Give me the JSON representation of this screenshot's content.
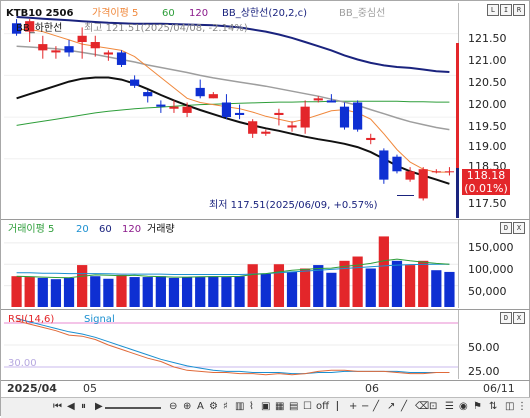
{
  "header": {
    "symbol": "KTB10 2506",
    "ma_label": "가격이평 5",
    "ma_60": "60",
    "ma_120": "120",
    "bb_upper": "BB_상한선(20,2,c)",
    "bb_mid": "BB_중심선",
    "bb_lower": "BB_하한선",
    "high_note": "최고 121.51(2025/04/08, -2.14%)"
  },
  "low_note": "최저 117.51(2025/06/09, +0.57%)",
  "price_axis": [
    "121.50",
    "121.00",
    "120.50",
    "120.00",
    "119.50",
    "119.00",
    "118.50",
    "117.50"
  ],
  "price_tag": {
    "price": "118.18",
    "change": "(0.01%)"
  },
  "volume": {
    "legend": "거래이평 5",
    "l20": "20",
    "l60": "60",
    "l120": "120",
    "l_vol": "거래량",
    "axis": [
      "150,000",
      "100,000",
      "50,000"
    ]
  },
  "rsi": {
    "legend": "RSI(14,6)",
    "signal": "Signal",
    "axis": [
      "50.00",
      "25.00"
    ],
    "level": "30.00"
  },
  "dates": [
    "2025/04",
    "05",
    "06",
    "06/11"
  ],
  "win_buttons": [
    "L",
    "I",
    "R"
  ],
  "win_buttons2": [
    "D",
    "X"
  ],
  "colors": {
    "up": "#e3262a",
    "down": "#0e2fd2",
    "ma5": "#f0883c",
    "bb_upper": "#1a237e",
    "bb_mid": "#9e9e9e",
    "bb_lower": "#111111",
    "ma60": "#2e9e3a"
  },
  "chart_data": [
    {
      "type": "candlestick",
      "title": "KTB10 2506",
      "ylim": [
        117.2,
        121.9
      ],
      "candles": [
        {
          "o": 121.75,
          "h": 121.85,
          "l": 121.45,
          "c": 121.5
        },
        {
          "o": 121.55,
          "h": 121.85,
          "l": 121.3,
          "c": 121.8
        },
        {
          "o": 121.1,
          "h": 121.45,
          "l": 120.9,
          "c": 121.25
        },
        {
          "o": 121.05,
          "h": 121.2,
          "l": 120.9,
          "c": 121.1
        },
        {
          "o": 121.2,
          "h": 121.35,
          "l": 120.95,
          "c": 121.05
        },
        {
          "o": 121.3,
          "h": 121.65,
          "l": 120.9,
          "c": 121.45
        },
        {
          "o": 121.15,
          "h": 121.45,
          "l": 120.95,
          "c": 121.3
        },
        {
          "o": 121.0,
          "h": 121.1,
          "l": 120.85,
          "c": 121.05
        },
        {
          "o": 121.05,
          "h": 121.1,
          "l": 120.7,
          "c": 120.75
        },
        {
          "o": 120.4,
          "h": 120.5,
          "l": 120.2,
          "c": 120.25
        },
        {
          "o": 120.1,
          "h": 120.15,
          "l": 119.85,
          "c": 120.0
        },
        {
          "o": 119.8,
          "h": 119.9,
          "l": 119.6,
          "c": 119.75
        },
        {
          "o": 119.7,
          "h": 119.9,
          "l": 119.6,
          "c": 119.75
        },
        {
          "o": 119.6,
          "h": 119.85,
          "l": 119.5,
          "c": 119.75
        },
        {
          "o": 120.2,
          "h": 120.4,
          "l": 119.95,
          "c": 120.0
        },
        {
          "o": 119.95,
          "h": 120.1,
          "l": 119.95,
          "c": 120.05
        },
        {
          "o": 119.85,
          "h": 120.05,
          "l": 119.45,
          "c": 119.5
        },
        {
          "o": 119.6,
          "h": 119.8,
          "l": 119.45,
          "c": 119.55
        },
        {
          "o": 119.1,
          "h": 119.45,
          "l": 119.0,
          "c": 119.4
        },
        {
          "o": 119.1,
          "h": 119.2,
          "l": 119.05,
          "c": 119.15
        },
        {
          "o": 119.55,
          "h": 119.7,
          "l": 119.3,
          "c": 119.6
        },
        {
          "o": 119.25,
          "h": 119.4,
          "l": 119.15,
          "c": 119.3
        },
        {
          "o": 119.25,
          "h": 119.9,
          "l": 119.1,
          "c": 119.75
        },
        {
          "o": 119.9,
          "h": 120.0,
          "l": 119.85,
          "c": 119.95
        },
        {
          "o": 119.9,
          "h": 120.05,
          "l": 119.85,
          "c": 119.85
        },
        {
          "o": 119.75,
          "h": 119.85,
          "l": 119.2,
          "c": 119.25
        },
        {
          "o": 119.85,
          "h": 119.9,
          "l": 119.15,
          "c": 119.2
        },
        {
          "o": 118.95,
          "h": 119.1,
          "l": 118.85,
          "c": 119.0
        },
        {
          "o": 118.7,
          "h": 118.75,
          "l": 117.9,
          "c": 118.0
        },
        {
          "o": 118.55,
          "h": 118.6,
          "l": 118.15,
          "c": 118.2
        },
        {
          "o": 118.0,
          "h": 118.3,
          "l": 117.95,
          "c": 118.2
        },
        {
          "o": 117.55,
          "h": 118.3,
          "l": 117.5,
          "c": 118.25
        },
        {
          "o": 118.2,
          "h": 118.25,
          "l": 118.15,
          "c": 118.2
        },
        {
          "o": 118.18,
          "h": 118.3,
          "l": 118.1,
          "c": 118.2
        }
      ],
      "bb_upper": [
        121.9,
        121.88,
        121.86,
        121.84,
        121.82,
        121.8,
        121.78,
        121.76,
        121.75,
        121.74,
        121.74,
        121.74,
        121.73,
        121.72,
        121.71,
        121.7,
        121.68,
        121.65,
        121.6,
        121.55,
        121.48,
        121.4,
        121.3,
        121.2,
        121.1,
        120.98,
        120.88,
        120.8,
        120.74,
        120.7,
        120.68,
        120.64,
        120.6,
        120.58
      ],
      "bb_mid": [
        121.2,
        121.18,
        121.16,
        121.14,
        121.1,
        121.05,
        121.0,
        120.94,
        120.88,
        120.82,
        120.75,
        120.69,
        120.63,
        120.57,
        120.5,
        120.44,
        120.39,
        120.34,
        120.29,
        120.24,
        120.18,
        120.12,
        120.06,
        120.0,
        119.93,
        119.86,
        119.78,
        119.68,
        119.58,
        119.48,
        119.39,
        119.32,
        119.25,
        119.2
      ],
      "bb_lower": [
        119.95,
        120.05,
        120.15,
        120.25,
        120.35,
        120.42,
        120.45,
        120.45,
        120.4,
        120.3,
        120.17,
        120.03,
        119.9,
        119.78,
        119.67,
        119.57,
        119.47,
        119.38,
        119.3,
        119.23,
        119.17,
        119.1,
        119.03,
        118.97,
        118.92,
        118.86,
        118.78,
        118.66,
        118.5,
        118.33,
        118.2,
        118.1,
        118.0,
        117.9
      ],
      "ma5": [
        121.6,
        121.6,
        121.55,
        121.45,
        121.35,
        121.25,
        121.2,
        121.15,
        121.1,
        120.95,
        120.7,
        120.45,
        120.2,
        119.95,
        119.85,
        119.8,
        119.75,
        119.7,
        119.62,
        119.52,
        119.45,
        119.38,
        119.45,
        119.55,
        119.65,
        119.68,
        119.6,
        119.45,
        119.1,
        118.72,
        118.42,
        118.25,
        118.18,
        118.18
      ],
      "ma60": [
        119.3,
        119.35,
        119.4,
        119.45,
        119.5,
        119.55,
        119.6,
        119.64,
        119.67,
        119.7,
        119.72,
        119.74,
        119.76,
        119.78,
        119.8,
        119.81,
        119.82,
        119.83,
        119.84,
        119.85,
        119.86,
        119.86,
        119.87,
        119.87,
        119.88,
        119.88,
        119.88,
        119.88,
        119.88,
        119.88,
        119.87,
        119.87,
        119.86,
        119.86
      ]
    },
    {
      "type": "bar",
      "title": "거래량",
      "ylim": [
        0,
        180000
      ],
      "values": [
        72000,
        70000,
        68000,
        65000,
        68000,
        98000,
        72000,
        66000,
        75000,
        70000,
        70000,
        72000,
        68000,
        70000,
        70000,
        72000,
        70000,
        72000,
        100000,
        78000,
        100000,
        82000,
        90000,
        98000,
        80000,
        108000,
        118000,
        90000,
        165000,
        108000,
        98000,
        108000,
        86000,
        82000
      ],
      "up": [
        true,
        true,
        false,
        false,
        false,
        true,
        false,
        false,
        true,
        false,
        false,
        false,
        false,
        false,
        false,
        false,
        false,
        false,
        true,
        false,
        true,
        false,
        true,
        false,
        false,
        true,
        true,
        false,
        true,
        false,
        true,
        true,
        false,
        false
      ],
      "ma5": [
        72000,
        71000,
        70000,
        69000,
        68500,
        72000,
        75000,
        74000,
        73000,
        74000,
        72000,
        71000,
        70000,
        70000,
        70500,
        71000,
        71000,
        71500,
        76000,
        78000,
        82000,
        86000,
        88000,
        90000,
        91000,
        95000,
        98000,
        102000,
        108000,
        112000,
        108000,
        105000,
        102000,
        100000
      ],
      "ma20": [
        80000,
        80000,
        79000,
        79000,
        78000,
        78000,
        78000,
        77500,
        77000,
        77000,
        77000,
        77000,
        76000,
        76000,
        76000,
        76000,
        76000,
        76000,
        77000,
        78000,
        80000,
        82000,
        84000,
        86000,
        88000,
        90000,
        92000,
        94000,
        96000,
        98000,
        99000,
        99500,
        100000,
        100000
      ]
    },
    {
      "type": "line",
      "title": "RSI(14,6)",
      "ylim": [
        20,
        80
      ],
      "rsi": [
        72,
        69,
        66,
        63,
        59,
        58,
        55,
        50,
        46,
        42,
        38,
        35,
        30,
        27,
        26,
        25,
        25,
        24,
        24,
        23,
        24,
        23,
        24,
        26,
        27,
        27,
        26,
        26,
        26,
        25,
        24,
        24,
        25,
        25
      ],
      "signal": [
        74,
        71,
        68,
        65,
        62,
        60,
        57,
        53,
        49,
        45,
        41,
        37,
        34,
        31,
        29,
        27,
        26,
        26,
        25,
        25,
        25,
        24,
        24,
        25,
        25,
        26,
        26,
        26,
        26,
        26,
        25,
        25,
        25,
        25
      ]
    }
  ]
}
